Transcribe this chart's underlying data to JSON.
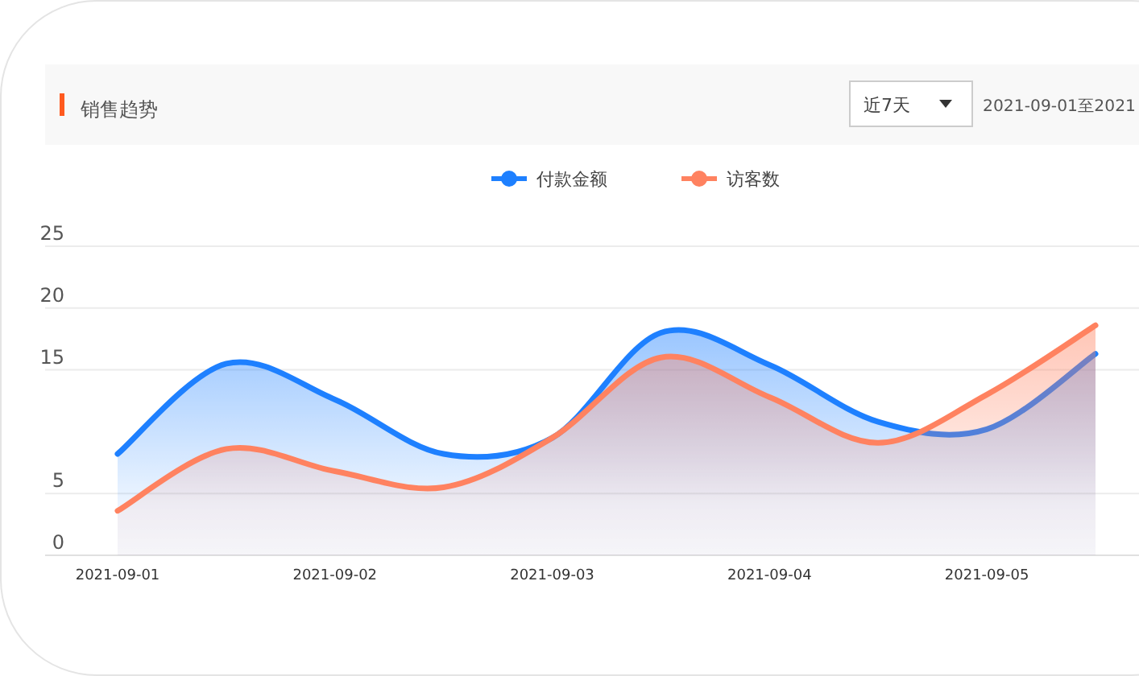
{
  "chart_data": {
    "type": "area",
    "title": "销售趋势",
    "annotations": [
      "近7天",
      "2021-09-01至2021"
    ],
    "categories": [
      "2021-09-01",
      null,
      "2021-09-02",
      null,
      "2021-09-03",
      null,
      "2021-09-04",
      null,
      "2021-09-05",
      null
    ],
    "series": [
      {
        "name": "付款金额",
        "color": "#1e80ff",
        "values": [
          8.2,
          15.5,
          12.6,
          8.2,
          9.5,
          18.0,
          15.4,
          10.8,
          10.2,
          16.3
        ]
      },
      {
        "name": "访客数",
        "color": "#ff8260",
        "values": [
          3.6,
          8.6,
          6.8,
          5.5,
          9.5,
          16.0,
          12.8,
          9.1,
          13.0,
          18.6
        ]
      }
    ],
    "ylim": [
      0,
      25
    ],
    "yticks": [
      0,
      5,
      15,
      20,
      25
    ],
    "grid": "y",
    "legend": "top"
  }
}
